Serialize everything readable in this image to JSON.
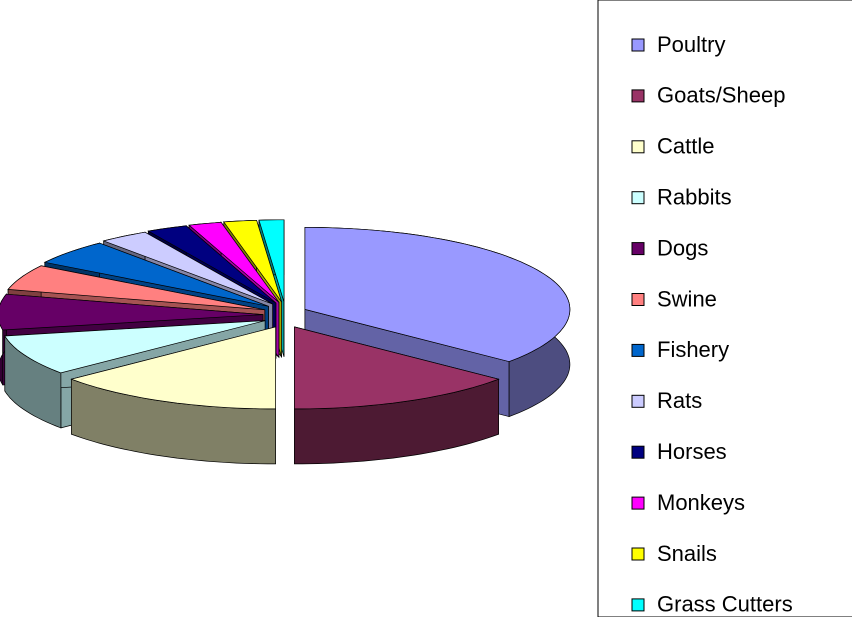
{
  "chart_data": {
    "type": "pie",
    "categories": [
      "Poultry",
      "Goats/Sheep",
      "Cattle",
      "Rabbits",
      "Dogs",
      "Swine",
      "Fishery",
      "Rats",
      "Horses",
      "Monkeys",
      "Snails",
      "Grass Cutters"
    ],
    "values": [
      36,
      14,
      14,
      8,
      7,
      5,
      5,
      3,
      2.5,
      2,
      2,
      1.5
    ],
    "colors": [
      "#9999ff",
      "#993366",
      "#ffffcc",
      "#ccffff",
      "#660066",
      "#ff8080",
      "#0066cc",
      "#ccccff",
      "#000080",
      "#ff00ff",
      "#ffff00",
      "#00ffff"
    ],
    "legend": "right"
  }
}
